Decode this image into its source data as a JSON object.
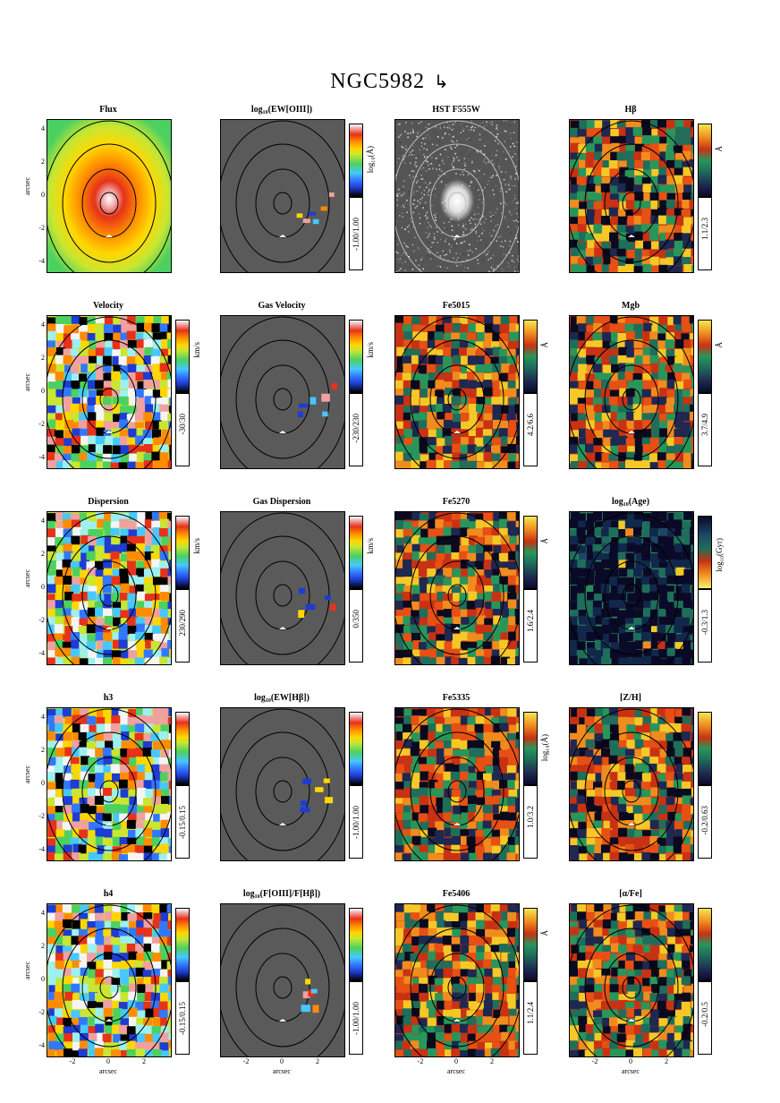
{
  "figure": {
    "title": "NGC5982",
    "north_arrow": "↳",
    "axis_label": "arcsec",
    "y_ticks": [
      "4",
      "2",
      "0",
      "-2",
      "-4"
    ],
    "x_ticks": [
      "-2",
      "0",
      "2"
    ]
  },
  "panels": [
    {
      "title": "Flux",
      "cmap": "flux",
      "range": "",
      "unit": ""
    },
    {
      "title": "log₁₀(EW[OIII])",
      "cmap": "gas",
      "range": "-1.00/1.00",
      "unit": "log₁₀(Å)"
    },
    {
      "title": "HST F555W",
      "cmap": "hst",
      "range": "",
      "unit": ""
    },
    {
      "title": "Hβ",
      "cmap": "idx",
      "range": "1.1/2.3",
      "unit": "Å"
    },
    {
      "title": "Velocity",
      "cmap": "vel",
      "range": "-30/30",
      "unit": "km/s"
    },
    {
      "title": "Gas Velocity",
      "cmap": "gas",
      "range": "-230/230",
      "unit": "km/s"
    },
    {
      "title": "Fe5015",
      "cmap": "idx",
      "range": "4.2/6.6",
      "unit": "Å"
    },
    {
      "title": "Mgb",
      "cmap": "idx",
      "range": "3.7/4.9",
      "unit": "Å"
    },
    {
      "title": "Dispersion",
      "cmap": "vel",
      "range": "230/290",
      "unit": "km/s"
    },
    {
      "title": "Gas Dispersion",
      "cmap": "gas",
      "range": "0/350",
      "unit": "km/s"
    },
    {
      "title": "Fe5270",
      "cmap": "idx",
      "range": "1.6/2.4",
      "unit": "Å"
    },
    {
      "title": "log₁₀(Age)",
      "cmap": "age",
      "range": "-0.3/1.3",
      "unit": "log₁₀(Gyr)"
    },
    {
      "title": "h3",
      "cmap": "vel",
      "range": "-0.15/0.15",
      "unit": ""
    },
    {
      "title": "log₁₀(EW[Hβ])",
      "cmap": "gas",
      "range": "-1.00/1.00",
      "unit": ""
    },
    {
      "title": "Fe5335",
      "cmap": "idx",
      "range": "1.0/3.2",
      "unit": "log₁₀(Å)"
    },
    {
      "title": "[Z/H]",
      "cmap": "idx",
      "range": "-0.2/0.63",
      "unit": ""
    },
    {
      "title": "h4",
      "cmap": "vel",
      "range": "-0.15/0.15",
      "unit": ""
    },
    {
      "title": "log₁₀(F[OIII]/F[Hβ])",
      "cmap": "gas",
      "range": "-1.00/1.00",
      "unit": ""
    },
    {
      "title": "Fe5406",
      "cmap": "idx",
      "range": "1.1/2.4",
      "unit": "Å"
    },
    {
      "title": "[α/Fe]",
      "cmap": "idx",
      "range": "-0.2/0.5",
      "unit": ""
    }
  ]
}
